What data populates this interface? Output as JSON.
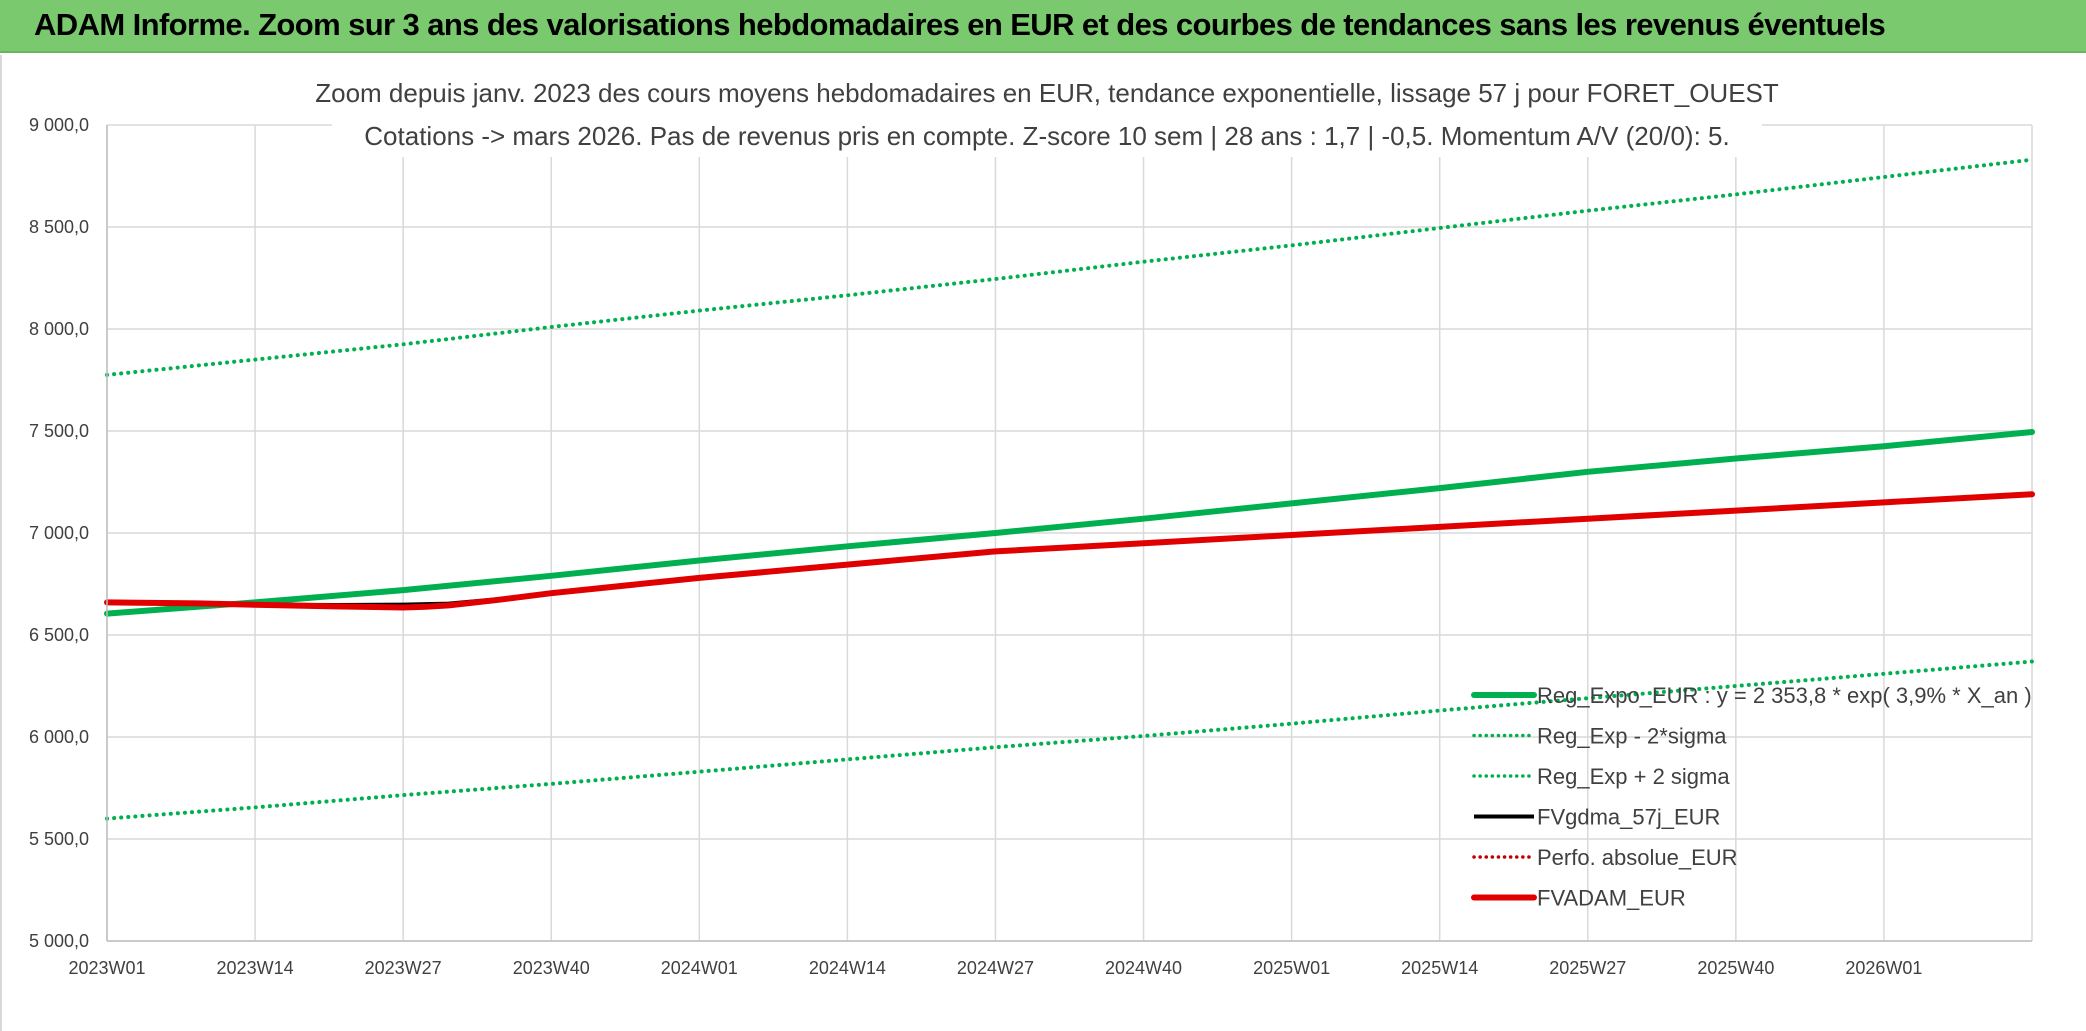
{
  "header": {
    "title": "ADAM Informe. Zoom sur 3 ans des valorisations hebdomadaires en EUR et des courbes de tendances sans les revenus éventuels",
    "background_color": "#7bc96f"
  },
  "chart_data": {
    "type": "line",
    "title_lines": [
      "Zoom depuis janv. 2023 des cours moyens hebdomadaires en EUR, tendance exponentielle, lissage 57 j pour FORET_OUEST",
      "Cotations -> mars 2026. Pas de revenus pris en compte. Z-score 10 sem | 28 ans : 1,7 | -0,5. Momentum A/V (20/0): 5."
    ],
    "xlabel": "",
    "ylabel": "",
    "ylim": [
      5000,
      9000
    ],
    "y_ticks": [
      5000,
      5500,
      6000,
      6500,
      7000,
      7500,
      8000,
      8500,
      9000
    ],
    "y_tick_labels": [
      "5 000,0",
      "5 500,0",
      "6 000,0",
      "6 500,0",
      "7 000,0",
      "7 500,0",
      "8 000,0",
      "8 500,0",
      "9 000,0"
    ],
    "x_range": [
      0,
      169
    ],
    "x_ticks": [
      0,
      13,
      26,
      39,
      52,
      65,
      78,
      91,
      104,
      117,
      130,
      143,
      156
    ],
    "x_tick_labels": [
      "2023W01",
      "2023W14",
      "2023W27",
      "2023W40",
      "2024W01",
      "2024W14",
      "2024W27",
      "2024W40",
      "2025W01",
      "2025W14",
      "2025W27",
      "2025W40",
      "2026W01"
    ],
    "grid": true,
    "legend_position": "bottom-right",
    "series": [
      {
        "name": "Reg_Expo_EUR : y = 2 353,8 * exp( 3,9% *  X_an )",
        "style": "solid-thick",
        "color": "#00b050",
        "x": [
          0,
          13,
          26,
          39,
          52,
          65,
          78,
          91,
          104,
          117,
          130,
          143,
          156,
          169
        ],
        "values": [
          6605,
          6660,
          6720,
          6790,
          6865,
          6935,
          7000,
          7070,
          7145,
          7220,
          7300,
          7365,
          7425,
          7495
        ]
      },
      {
        "name": "Reg_Exp - 2*sigma",
        "style": "dotted",
        "color": "#00b050",
        "x": [
          0,
          13,
          26,
          39,
          52,
          65,
          78,
          91,
          104,
          117,
          130,
          143,
          156,
          169
        ],
        "values": [
          5600,
          5655,
          5715,
          5770,
          5830,
          5890,
          5950,
          6005,
          6065,
          6130,
          6190,
          6250,
          6310,
          6370
        ]
      },
      {
        "name": "Reg_Exp + 2 sigma",
        "style": "dotted",
        "color": "#00b050",
        "x": [
          0,
          13,
          26,
          39,
          52,
          65,
          78,
          91,
          104,
          117,
          130,
          143,
          156,
          169
        ],
        "values": [
          7775,
          7850,
          7925,
          8010,
          8090,
          8165,
          8245,
          8330,
          8410,
          8495,
          8580,
          8660,
          8745,
          8830
        ]
      },
      {
        "name": "FVgdma_57j_EUR",
        "style": "solid",
        "color": "#000000",
        "x": [
          0,
          8,
          13,
          20,
          26,
          30,
          34,
          39,
          52,
          65,
          78,
          91,
          104,
          117,
          130,
          143,
          156,
          169
        ],
        "values": [
          6660,
          6655,
          6650,
          6648,
          6650,
          6655,
          6675,
          6705,
          6780,
          6845,
          6910,
          6950,
          6990,
          7030,
          7070,
          7110,
          7150,
          7190
        ]
      },
      {
        "name": "Perfo. absolue_EUR",
        "style": "dotted",
        "color": "#c00000",
        "x": [],
        "values": []
      },
      {
        "name": "FVADAM_EUR",
        "style": "solid-thick",
        "color": "#e00000",
        "x": [
          0,
          8,
          13,
          20,
          26,
          28,
          30,
          34,
          39,
          52,
          65,
          78,
          91,
          104,
          117,
          130,
          143,
          156,
          169
        ],
        "values": [
          6660,
          6655,
          6648,
          6640,
          6635,
          6638,
          6645,
          6670,
          6705,
          6780,
          6845,
          6910,
          6950,
          6990,
          7030,
          7070,
          7110,
          7150,
          7190
        ]
      }
    ]
  }
}
